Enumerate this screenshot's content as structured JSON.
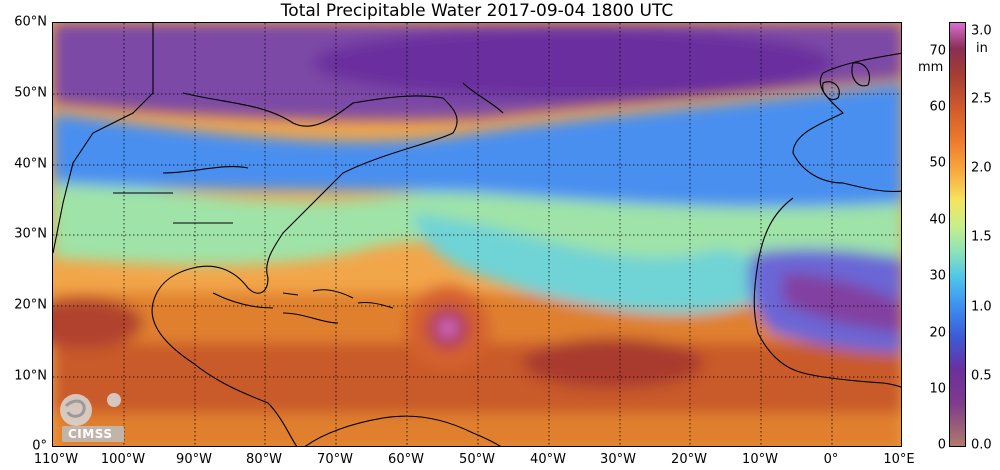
{
  "title": "Total Precipitable Water  2017-09-04 1800 UTC",
  "lat_labels": [
    "60°N",
    "50°N",
    "40°N",
    "30°N",
    "20°N",
    "10°N",
    "0°"
  ],
  "lon_labels": [
    "110°W",
    "100°W",
    "90°W",
    "80°W",
    "70°W",
    "60°W",
    "50°W",
    "40°W",
    "30°W",
    "20°W",
    "10°W",
    "0°",
    "10°E"
  ],
  "colorbar": {
    "mm_unit": "mm",
    "in_unit": "in",
    "mm_ticks": [
      "70",
      "60",
      "50",
      "40",
      "30",
      "20",
      "10",
      "0"
    ],
    "in_ticks": [
      "3.0",
      "2.5",
      "2.0",
      "1.5",
      "1.0",
      "0.5",
      "0.0"
    ]
  },
  "logo_text": "CIMSS",
  "colors": {
    "dry": "#7f3b8c",
    "moist": "#f9a93f",
    "very_moist": "#a33d34",
    "mid": "#4fc7e8"
  }
}
